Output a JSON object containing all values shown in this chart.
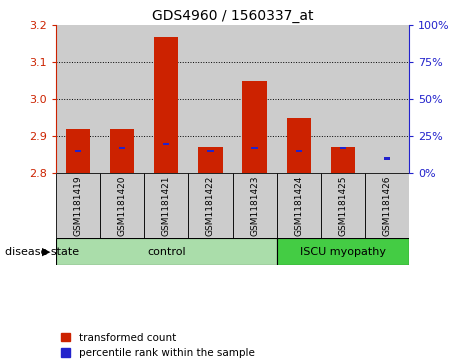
{
  "title": "GDS4960 / 1560337_at",
  "samples": [
    "GSM1181419",
    "GSM1181420",
    "GSM1181421",
    "GSM1181422",
    "GSM1181423",
    "GSM1181424",
    "GSM1181425",
    "GSM1181426"
  ],
  "transformed_counts": [
    2.92,
    2.92,
    3.17,
    2.87,
    3.05,
    2.95,
    2.87,
    2.8
  ],
  "percentile_ranks": [
    15,
    17,
    20,
    15,
    17,
    15,
    17,
    10
  ],
  "bar_bottom": 2.8,
  "ylim": [
    2.8,
    3.2
  ],
  "yticks_left": [
    2.8,
    2.9,
    3.0,
    3.1,
    3.2
  ],
  "yticks_right": [
    0,
    25,
    50,
    75,
    100
  ],
  "left_color": "#cc2200",
  "blue_color": "#2222cc",
  "control_color": "#aaddaa",
  "myopathy_color": "#44cc44",
  "col_bg_color": "#cccccc",
  "plot_bg_color": "#ffffff",
  "control_samples": 5,
  "myopathy_samples": 3,
  "control_label": "control",
  "myopathy_label": "ISCU myopathy",
  "disease_state_label": "disease state",
  "legend_red": "transformed count",
  "legend_blue": "percentile rank within the sample",
  "bar_width": 0.55
}
